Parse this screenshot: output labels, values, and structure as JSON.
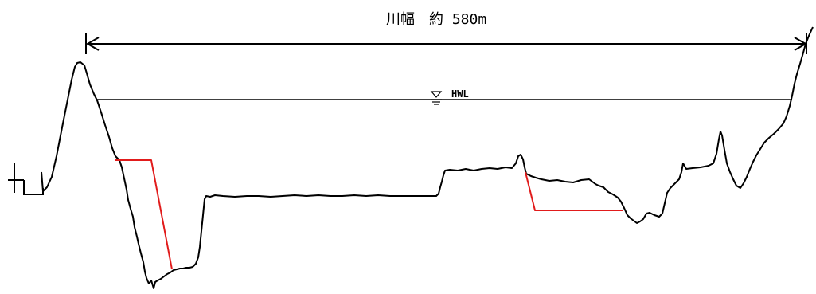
{
  "river_width_label": "川幅　約 580m",
  "hwl_label": "HWL",
  "colors": {
    "ground_line": "#000000",
    "improvement_line": "#e11b1b",
    "text": "#000000",
    "background": "#ffffff"
  },
  "icons": {
    "water_level_marker": "inverted-triangle-water-level-icon"
  }
}
